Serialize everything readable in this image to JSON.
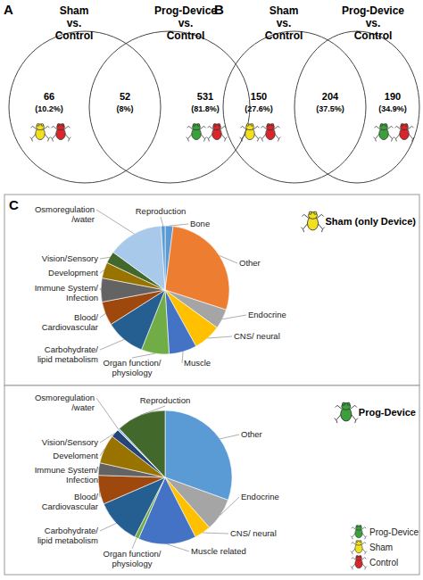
{
  "chart_data": [
    {
      "type": "venn",
      "panel": "A",
      "sets": [
        "Sham\nvs.\nControl",
        "Prog-Device\nvs.\nControl"
      ],
      "values": [
        66,
        52,
        531
      ],
      "percentages": [
        10.2,
        8,
        81.8
      ],
      "percentage_labels": [
        "(10.2%)",
        "(8%)",
        "(81.8%)"
      ]
    },
    {
      "type": "venn",
      "panel": "B",
      "sets": [
        "Sham\nvs.\nControl",
        "Prog-Device\nvs.\nControl"
      ],
      "values": [
        150,
        204,
        190
      ],
      "percentages": [
        27.6,
        37.5,
        34.9
      ],
      "percentage_labels": [
        "(27.6%)",
        "(37.5%)",
        "(34.9%)"
      ]
    },
    {
      "type": "pie",
      "panel": "C",
      "title": "Sham (only Device)",
      "categories": [
        "Bone",
        "Other",
        "Endocrine",
        "CNS/ neural",
        "Muscle",
        "Organ function/\nphysiology",
        "Carbohydrate/\nlipid metabolism",
        "Blood/\nCardiovascular",
        "Immune System/\nInfection",
        "Development",
        "Vision/Sensory",
        "Osmoregulation\n/water",
        "Reproduction"
      ],
      "values": [
        2,
        28,
        5,
        7,
        7,
        7,
        10,
        6,
        6,
        4,
        3,
        14,
        1
      ],
      "colors": [
        "#5b9bd5",
        "#ed7d31",
        "#a5a5a5",
        "#ffc000",
        "#4472c4",
        "#70ad47",
        "#255e91",
        "#9e480e",
        "#636363",
        "#997300",
        "#43682b",
        "#a9c9ea",
        "#5b9bd5"
      ]
    },
    {
      "type": "pie",
      "title": "Prog-Device",
      "categories": [
        "Other",
        "Endocrine",
        "CNS/ neural",
        "Muscle related",
        "Organ function/\nphysiology",
        "Carbohydrate/\nlipid metabolism",
        "Blood/\nCardiovascular",
        "Immune System/\nInfection",
        "Develoment",
        "Vision/Sensory",
        "Osmoregulation\n/water",
        "Reproduction"
      ],
      "values": [
        30.5,
        8,
        4,
        14,
        1,
        11,
        7,
        3,
        7,
        2,
        0.5,
        12
      ],
      "colors": [
        "#5b9bd5",
        "#a5a5a5",
        "#ffc000",
        "#4472c4",
        "#70ad47",
        "#255e91",
        "#9e480e",
        "#636363",
        "#997300",
        "#264478",
        "#9dc3e6",
        "#43682b"
      ]
    }
  ],
  "figure_legend": {
    "items": [
      {
        "name": "Prog-Device",
        "color": "#3aa13a"
      },
      {
        "name": "Sham",
        "color": "#f2e01e"
      },
      {
        "name": "Control",
        "color": "#d8262a"
      }
    ]
  }
}
